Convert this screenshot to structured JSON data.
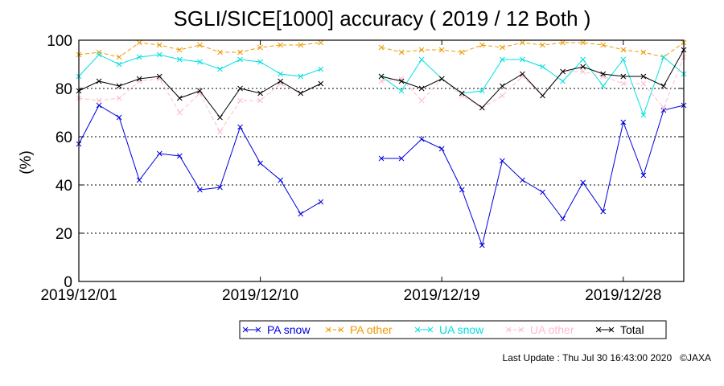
{
  "chart_data": {
    "type": "line",
    "title": "SGLI/SICE[1000] accuracy ( 2019 / 12 Both )",
    "ylabel": "(%)",
    "xlabel": "",
    "ylim": [
      0,
      100
    ],
    "yticks": [
      0,
      20,
      40,
      60,
      80,
      100
    ],
    "xlim": [
      1,
      31
    ],
    "xticks": [
      {
        "day": 1,
        "label": "2019/12/01"
      },
      {
        "day": 10,
        "label": "2019/12/10"
      },
      {
        "day": 19,
        "label": "2019/12/19"
      },
      {
        "day": 28,
        "label": "2019/12/28"
      }
    ],
    "grid": "dotted horizontal at 20, 40, 60, 80",
    "legend_position": "bottom",
    "series": [
      {
        "name": "PA snow",
        "color": "#0000dd",
        "dash": "solid",
        "x": [
          1,
          2,
          3,
          4,
          5,
          6,
          7,
          8,
          9,
          10,
          11,
          12,
          13,
          14,
          16,
          17,
          18,
          19,
          20,
          21,
          22,
          23,
          24,
          25,
          26,
          27,
          28,
          29,
          30,
          31
        ],
        "y": [
          57,
          73,
          68,
          42,
          53,
          52,
          38,
          39,
          64,
          49,
          42,
          28,
          33,
          null,
          51,
          51,
          59,
          55,
          38,
          15,
          50,
          42,
          37,
          26,
          41,
          29,
          66,
          44,
          71,
          73
        ]
      },
      {
        "name": "PA other",
        "color": "#ee9900",
        "dash": "dashed",
        "x": [
          1,
          2,
          3,
          4,
          5,
          6,
          7,
          8,
          9,
          10,
          11,
          12,
          13,
          14,
          16,
          17,
          18,
          19,
          20,
          21,
          22,
          23,
          24,
          25,
          26,
          27,
          28,
          29,
          30,
          31
        ],
        "y": [
          94,
          95,
          93,
          99,
          98,
          96,
          98,
          95,
          95,
          97,
          98,
          98,
          99,
          null,
          97,
          95,
          96,
          96,
          95,
          98,
          97,
          99,
          98,
          99,
          99,
          98,
          96,
          95,
          93,
          99
        ]
      },
      {
        "name": "UA snow",
        "color": "#00e0e0",
        "dash": "solid",
        "x": [
          1,
          2,
          3,
          4,
          5,
          6,
          7,
          8,
          9,
          10,
          11,
          12,
          13,
          14,
          16,
          17,
          18,
          19,
          20,
          21,
          22,
          23,
          24,
          25,
          26,
          27,
          28,
          29,
          30,
          31
        ],
        "y": [
          85,
          94,
          90,
          93,
          94,
          92,
          91,
          88,
          92,
          91,
          86,
          85,
          88,
          null,
          85,
          79,
          92,
          84,
          78,
          79,
          92,
          92,
          89,
          83,
          92,
          81,
          92,
          69,
          93,
          86
        ]
      },
      {
        "name": "UA other",
        "color": "#ffbbcc",
        "dash": "dashed",
        "x": [
          1,
          2,
          3,
          4,
          5,
          6,
          7,
          8,
          9,
          10,
          11,
          12,
          13,
          14,
          16,
          17,
          18,
          19,
          20,
          21,
          22,
          23,
          24,
          25,
          26,
          27,
          28,
          29,
          30,
          31
        ],
        "y": [
          76,
          75,
          76,
          83,
          84,
          70,
          78,
          62,
          75,
          75,
          82,
          78,
          82,
          null,
          83,
          84,
          75,
          84,
          77,
          72,
          77,
          85,
          77,
          87,
          87,
          85,
          82,
          82,
          72,
          93
        ]
      },
      {
        "name": "Total",
        "color": "#000000",
        "dash": "solid",
        "x": [
          1,
          2,
          3,
          4,
          5,
          6,
          7,
          8,
          9,
          10,
          11,
          12,
          13,
          14,
          16,
          17,
          18,
          19,
          20,
          21,
          22,
          23,
          24,
          25,
          26,
          27,
          28,
          29,
          30,
          31
        ],
        "y": [
          79,
          83,
          81,
          84,
          85,
          76,
          79,
          68,
          80,
          78,
          83,
          78,
          82,
          null,
          85,
          83,
          80,
          84,
          78,
          72,
          81,
          86,
          77,
          87,
          89,
          86,
          85,
          85,
          81,
          96
        ]
      }
    ]
  },
  "footer": {
    "last_update": "Last Update : Thu Jul 30 16:43:00 2020",
    "copyright": "©JAXA"
  }
}
